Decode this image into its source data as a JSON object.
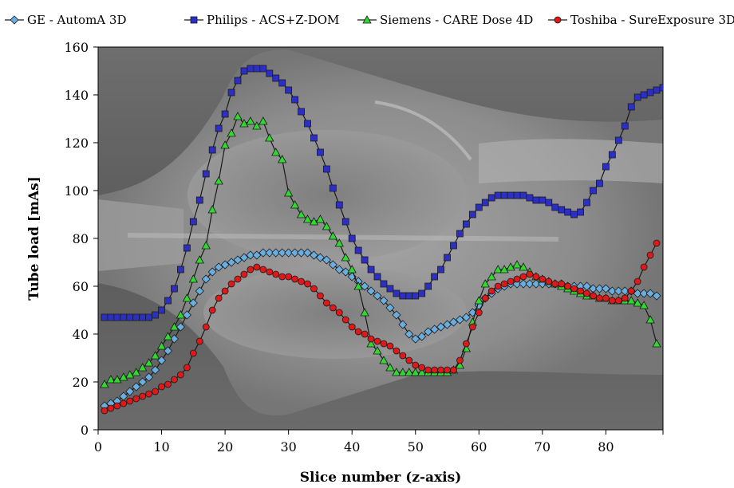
{
  "chart_data": {
    "type": "line",
    "title": "",
    "xlabel": "Slice number (z-axis)",
    "ylabel": "Tube load [mAs]",
    "xlim": [
      0,
      89
    ],
    "ylim": [
      0,
      160
    ],
    "xticks": [
      0,
      10,
      20,
      30,
      40,
      50,
      60,
      70,
      80
    ],
    "yticks": [
      0,
      20,
      40,
      60,
      80,
      100,
      120,
      140,
      160
    ],
    "background": "grayscale CT topogram (scout) image of a chest",
    "grid": false,
    "legend_position": "top",
    "series": [
      {
        "name": "GE - AutomA 3D",
        "color": "#6aaee0",
        "marker": "diamond",
        "x": [
          1,
          2,
          3,
          4,
          5,
          6,
          7,
          8,
          9,
          10,
          11,
          12,
          13,
          14,
          15,
          16,
          17,
          18,
          19,
          20,
          21,
          22,
          23,
          24,
          25,
          26,
          27,
          28,
          29,
          30,
          31,
          32,
          33,
          34,
          35,
          36,
          37,
          38,
          39,
          40,
          41,
          42,
          43,
          44,
          45,
          46,
          47,
          48,
          49,
          50,
          51,
          52,
          53,
          54,
          55,
          56,
          57,
          58,
          59,
          60,
          61,
          62,
          63,
          64,
          65,
          66,
          67,
          68,
          69,
          70,
          71,
          72,
          73,
          74,
          75,
          76,
          77,
          78,
          79,
          80,
          81,
          82,
          83,
          84,
          85,
          86,
          87,
          88
        ],
        "values": [
          10,
          11,
          12,
          14,
          16,
          18,
          20,
          22,
          25,
          29,
          33,
          38,
          43,
          48,
          53,
          58,
          63,
          66,
          68,
          69,
          70,
          71,
          72,
          73,
          73,
          74,
          74,
          74,
          74,
          74,
          74,
          74,
          74,
          73,
          72,
          71,
          69,
          67,
          66,
          64,
          62,
          60,
          58,
          56,
          54,
          51,
          48,
          44,
          40,
          38,
          39,
          41,
          42,
          43,
          44,
          45,
          46,
          47,
          49,
          52,
          55,
          57,
          59,
          60,
          61,
          61,
          61,
          61,
          61,
          61,
          61,
          61,
          61,
          60,
          60,
          60,
          60,
          59,
          59,
          59,
          58,
          58,
          58,
          58,
          57,
          57,
          57,
          56
        ]
      },
      {
        "name": "Philips - ACS+Z-DOM",
        "color": "#2b2fc4",
        "marker": "square",
        "x": [
          1,
          2,
          3,
          4,
          5,
          6,
          7,
          8,
          9,
          10,
          11,
          12,
          13,
          14,
          15,
          16,
          17,
          18,
          19,
          20,
          21,
          22,
          23,
          24,
          25,
          26,
          27,
          28,
          29,
          30,
          31,
          32,
          33,
          34,
          35,
          36,
          37,
          38,
          39,
          40,
          41,
          42,
          43,
          44,
          45,
          46,
          47,
          48,
          49,
          50,
          51,
          52,
          53,
          54,
          55,
          56,
          57,
          58,
          59,
          60,
          61,
          62,
          63,
          64,
          65,
          66,
          67,
          68,
          69,
          70,
          71,
          72,
          73,
          74,
          75,
          76,
          77,
          78,
          79,
          80,
          81,
          82,
          83,
          84,
          85,
          86,
          87,
          88,
          89
        ],
        "values": [
          47,
          47,
          47,
          47,
          47,
          47,
          47,
          47,
          48,
          50,
          54,
          59,
          67,
          76,
          87,
          96,
          107,
          117,
          126,
          132,
          141,
          146,
          150,
          151,
          151,
          151,
          149,
          147,
          145,
          142,
          138,
          133,
          128,
          122,
          116,
          109,
          101,
          94,
          87,
          80,
          75,
          71,
          67,
          64,
          61,
          59,
          57,
          56,
          56,
          56,
          57,
          60,
          64,
          67,
          72,
          77,
          82,
          86,
          90,
          93,
          95,
          97,
          98,
          98,
          98,
          98,
          98,
          97,
          96,
          96,
          95,
          93,
          92,
          91,
          90,
          91,
          95,
          100,
          103,
          110,
          115,
          121,
          127,
          135,
          139,
          140,
          141,
          142,
          143
        ]
      },
      {
        "name": "Siemens - CARE Dose 4D",
        "color": "#30d930",
        "marker": "triangle",
        "x": [
          1,
          2,
          3,
          4,
          5,
          6,
          7,
          8,
          9,
          10,
          11,
          12,
          13,
          14,
          15,
          16,
          17,
          18,
          19,
          20,
          21,
          22,
          23,
          24,
          25,
          26,
          27,
          28,
          29,
          30,
          31,
          32,
          33,
          34,
          35,
          36,
          37,
          38,
          39,
          40,
          41,
          42,
          43,
          44,
          45,
          46,
          47,
          48,
          49,
          50,
          51,
          52,
          53,
          54,
          55,
          56,
          57,
          58,
          59,
          60,
          61,
          62,
          63,
          64,
          65,
          66,
          67,
          68,
          69,
          70,
          71,
          72,
          73,
          74,
          75,
          76,
          77,
          78,
          79,
          80,
          81,
          82,
          83,
          84,
          85,
          86,
          87,
          88
        ],
        "values": [
          19,
          21,
          21,
          22,
          23,
          24,
          26,
          28,
          31,
          35,
          39,
          43,
          48,
          55,
          63,
          71,
          77,
          92,
          104,
          119,
          124,
          131,
          128,
          129,
          127,
          129,
          122,
          116,
          113,
          99,
          94,
          90,
          88,
          87,
          88,
          85,
          81,
          78,
          72,
          67,
          60,
          49,
          36,
          33,
          29,
          26,
          24,
          24,
          24,
          24,
          24,
          24,
          24,
          24,
          24,
          25,
          27,
          34,
          45,
          54,
          61,
          64,
          67,
          67,
          68,
          69,
          68,
          66,
          64,
          63,
          62,
          61,
          60,
          59,
          58,
          57,
          56,
          56,
          55,
          55,
          54,
          54,
          54,
          54,
          53,
          52,
          46,
          36
        ]
      },
      {
        "name": "Toshiba - SureExposure 3D",
        "color": "#e01818",
        "marker": "circle",
        "x": [
          1,
          2,
          3,
          4,
          5,
          6,
          7,
          8,
          9,
          10,
          11,
          12,
          13,
          14,
          15,
          16,
          17,
          18,
          19,
          20,
          21,
          22,
          23,
          24,
          25,
          26,
          27,
          28,
          29,
          30,
          31,
          32,
          33,
          34,
          35,
          36,
          37,
          38,
          39,
          40,
          41,
          42,
          43,
          44,
          45,
          46,
          47,
          48,
          49,
          50,
          51,
          52,
          53,
          54,
          55,
          56,
          57,
          58,
          59,
          60,
          61,
          62,
          63,
          64,
          65,
          66,
          67,
          68,
          69,
          70,
          71,
          72,
          73,
          74,
          75,
          76,
          77,
          78,
          79,
          80,
          81,
          82,
          83,
          84,
          85,
          86,
          87,
          88
        ],
        "values": [
          8,
          9,
          10,
          11,
          12,
          13,
          14,
          15,
          16,
          18,
          19,
          21,
          23,
          26,
          32,
          37,
          43,
          50,
          55,
          58,
          61,
          63,
          65,
          67,
          68,
          67,
          66,
          65,
          64,
          64,
          63,
          62,
          61,
          59,
          56,
          53,
          51,
          49,
          46,
          43,
          41,
          40,
          38,
          37,
          36,
          35,
          33,
          31,
          29,
          27,
          26,
          25,
          25,
          25,
          25,
          25,
          29,
          36,
          43,
          49,
          55,
          58,
          60,
          61,
          62,
          63,
          64,
          65,
          64,
          63,
          62,
          61,
          61,
          60,
          59,
          58,
          57,
          56,
          55,
          55,
          54,
          54,
          55,
          58,
          62,
          68,
          73,
          78
        ]
      }
    ]
  }
}
